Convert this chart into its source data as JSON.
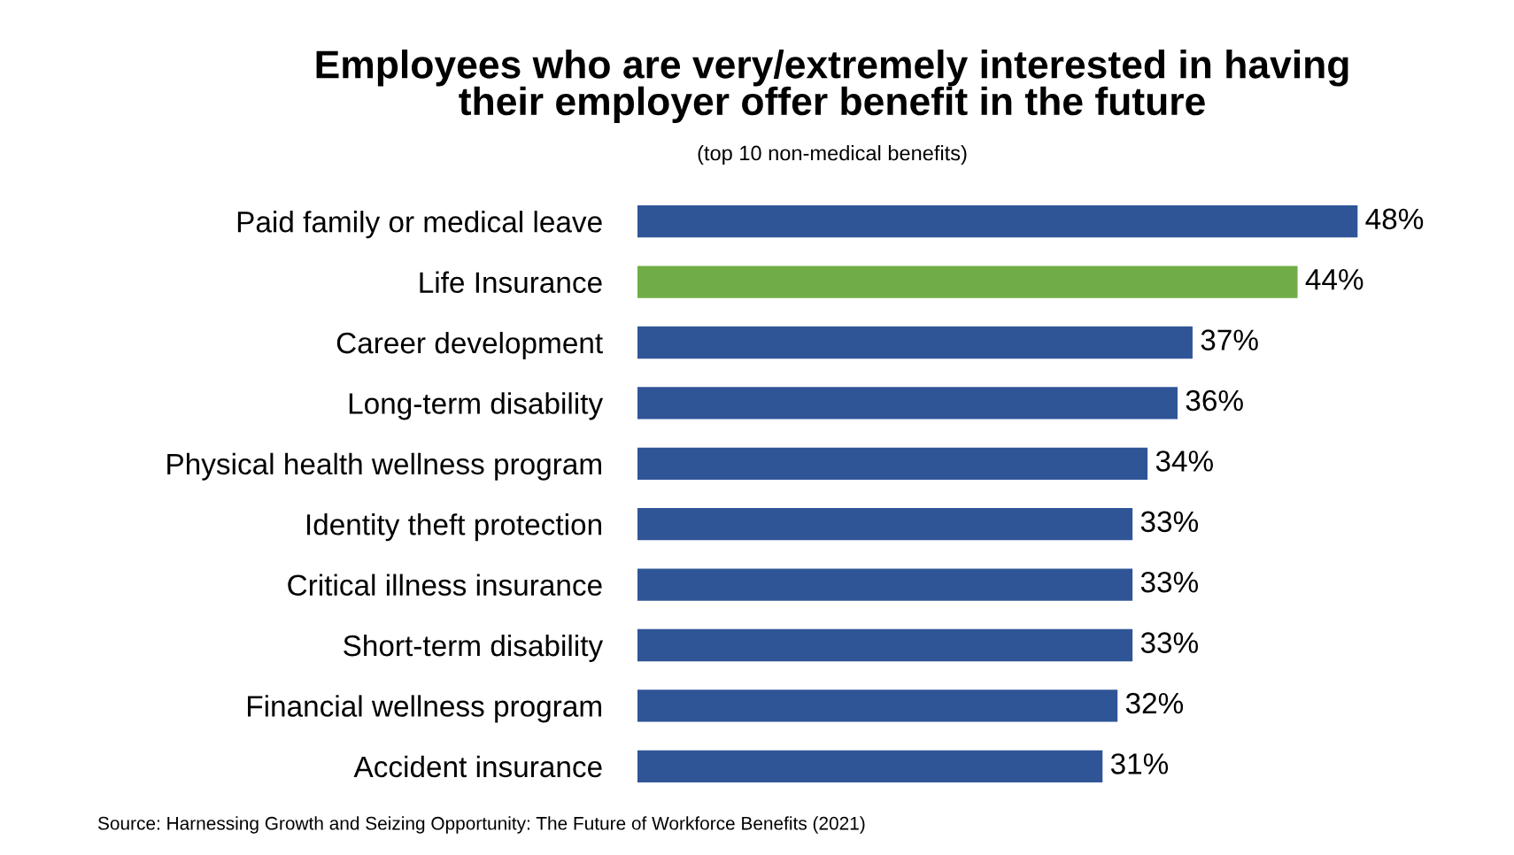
{
  "chart_data": {
    "type": "bar",
    "orientation": "horizontal",
    "title": "Employees who are very/extremely interested in having\ntheir employer offer benefit in the future",
    "subtitle": "(top 10 non-medical benefits)",
    "categories": [
      "Paid family or medical leave",
      "Life Insurance",
      "Career development",
      "Long-term disability",
      "Physical health wellness program",
      "Identity theft protection",
      "Critical illness insurance",
      "Short-term disability",
      "Financial wellness program",
      "Accident insurance"
    ],
    "values": [
      48,
      44,
      37,
      36,
      34,
      33,
      33,
      33,
      32,
      31
    ],
    "colors": [
      "#2f5597",
      "#70ad47",
      "#2f5597",
      "#2f5597",
      "#2f5597",
      "#2f5597",
      "#2f5597",
      "#2f5597",
      "#2f5597",
      "#2f5597"
    ],
    "value_labels": [
      "48%",
      "44%",
      "37%",
      "36%",
      "34%",
      "33%",
      "33%",
      "33%",
      "32%",
      "31%"
    ],
    "annotations": [
      "Source: Harnessing Growth and Seizing Opportunity: The Future of Workforce Benefits (2021)"
    ],
    "grid": false,
    "legend": false
  }
}
